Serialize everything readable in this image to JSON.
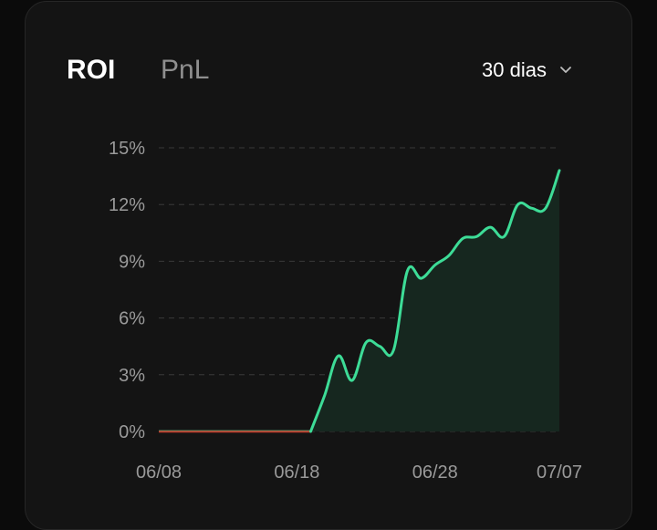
{
  "tabs": {
    "roi_label": "ROI",
    "pnl_label": "PnL",
    "active": "ROI"
  },
  "period": {
    "label": "30 dias",
    "icon": "chevron-down-icon"
  },
  "colors": {
    "line_positive": "#3ddc97",
    "area_fill": "#16271f",
    "baseline_negative": "#c0392b",
    "grid": "#3a3a3a",
    "background": "#141414"
  },
  "chart_data": {
    "type": "area",
    "ylim": [
      0,
      15
    ],
    "yticks": [
      0,
      3,
      6,
      9,
      12,
      15
    ],
    "ytick_labels": [
      "0%",
      "3%",
      "6%",
      "9%",
      "12%",
      "15%"
    ],
    "xlim": [
      "06/08",
      "07/07"
    ],
    "xtick_labels": [
      "06/08",
      "06/18",
      "06/28",
      "07/07"
    ],
    "grid": true,
    "legend": "none",
    "series": [
      {
        "x": [
          "06/08",
          "06/09",
          "06/10",
          "06/11",
          "06/12",
          "06/13",
          "06/14",
          "06/15",
          "06/16",
          "06/17",
          "06/18",
          "06/19",
          "06/20",
          "06/21",
          "06/22",
          "06/23",
          "06/24",
          "06/25",
          "06/26",
          "06/27",
          "06/28",
          "06/29",
          "06/30",
          "07/01",
          "07/02",
          "07/03",
          "07/04",
          "07/05",
          "07/06",
          "07/07"
        ],
        "y": [
          0,
          0,
          0,
          0,
          0,
          0,
          0,
          0,
          0,
          0,
          0,
          0,
          1.9,
          4.0,
          2.7,
          4.7,
          4.5,
          4.3,
          8.5,
          8.1,
          8.8,
          9.3,
          10.2,
          10.3,
          10.8,
          10.3,
          12.0,
          11.8,
          11.8,
          13.8
        ]
      }
    ]
  }
}
